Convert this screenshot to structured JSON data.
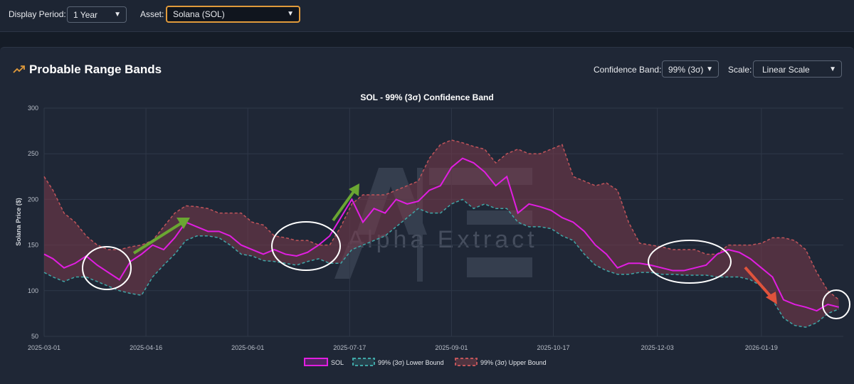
{
  "controls": {
    "display_period_label": "Display Period:",
    "display_period_value": "1 Year",
    "asset_label": "Asset:",
    "asset_value": "Solana (SOL)"
  },
  "card": {
    "title": "Probable Range Bands",
    "confidence_label": "Confidence Band:",
    "confidence_value": "99% (3σ)",
    "scale_label": "Scale:",
    "scale_value": "Linear Scale"
  },
  "watermark": "Alpha Extract",
  "colors": {
    "price": "#e11ee1",
    "lower": "#3fa7a7",
    "upper": "#c0545a",
    "band_fill": "#7a3a4a",
    "accent": "#e09a3b",
    "arrow_up": "#6aa632",
    "arrow_down": "#e0533c",
    "highlight": "#ffffff"
  },
  "chart_data": {
    "type": "line",
    "title": "SOL - 99% (3σ) Confidence Band",
    "ylabel": "Solana Price ($)",
    "xlabel": "",
    "ylim": [
      50,
      300
    ],
    "yticks": [
      "50",
      "100",
      "150",
      "200",
      "250",
      "300"
    ],
    "xlim": [
      "2025-03-01",
      "2026-02-25"
    ],
    "xticks": [
      "2025-03-01",
      "2025-04-16",
      "2025-06-01",
      "2025-07-17",
      "2025-09-01",
      "2025-10-17",
      "2025-12-03",
      "2026-01-19"
    ],
    "grid": true,
    "legend_position": "bottom-center",
    "x": [
      "2025-03-01",
      "2025-03-05",
      "2025-03-10",
      "2025-03-15",
      "2025-03-20",
      "2025-03-25",
      "2025-03-30",
      "2025-04-04",
      "2025-04-09",
      "2025-04-14",
      "2025-04-19",
      "2025-04-24",
      "2025-04-29",
      "2025-05-04",
      "2025-05-09",
      "2025-05-14",
      "2025-05-19",
      "2025-05-24",
      "2025-05-29",
      "2025-06-03",
      "2025-06-08",
      "2025-06-13",
      "2025-06-18",
      "2025-06-23",
      "2025-06-28",
      "2025-07-03",
      "2025-07-08",
      "2025-07-13",
      "2025-07-18",
      "2025-07-23",
      "2025-07-28",
      "2025-08-02",
      "2025-08-07",
      "2025-08-12",
      "2025-08-17",
      "2025-08-22",
      "2025-08-27",
      "2025-09-01",
      "2025-09-06",
      "2025-09-11",
      "2025-09-16",
      "2025-09-21",
      "2025-09-26",
      "2025-10-01",
      "2025-10-06",
      "2025-10-11",
      "2025-10-16",
      "2025-10-21",
      "2025-10-26",
      "2025-10-31",
      "2025-11-05",
      "2025-11-10",
      "2025-11-15",
      "2025-11-20",
      "2025-11-25",
      "2025-11-30",
      "2025-12-05",
      "2025-12-10",
      "2025-12-15",
      "2025-12-20",
      "2025-12-25",
      "2025-12-30",
      "2026-01-04",
      "2026-01-09",
      "2026-01-14",
      "2026-01-19",
      "2026-01-24",
      "2026-01-29",
      "2026-02-03",
      "2026-02-08",
      "2026-02-13",
      "2026-02-18",
      "2026-02-23"
    ],
    "series": [
      {
        "name": "SOL",
        "values": [
          140,
          135,
          125,
          130,
          138,
          128,
          120,
          112,
          132,
          140,
          150,
          145,
          158,
          175,
          170,
          165,
          165,
          160,
          150,
          145,
          140,
          145,
          140,
          138,
          142,
          150,
          160,
          180,
          200,
          175,
          190,
          185,
          200,
          195,
          198,
          210,
          215,
          235,
          245,
          240,
          230,
          215,
          225,
          185,
          195,
          192,
          188,
          180,
          175,
          165,
          150,
          140,
          125,
          130,
          130,
          128,
          125,
          122,
          122,
          125,
          128,
          140,
          145,
          142,
          135,
          125,
          115,
          90,
          85,
          82,
          78,
          85,
          82
        ]
      },
      {
        "name": "99% (3σ) Lower Bound",
        "values": [
          120,
          115,
          110,
          115,
          115,
          110,
          105,
          100,
          97,
          95,
          115,
          128,
          140,
          155,
          160,
          160,
          158,
          150,
          140,
          138,
          133,
          132,
          130,
          128,
          132,
          135,
          130,
          130,
          145,
          150,
          155,
          160,
          170,
          180,
          190,
          185,
          185,
          195,
          200,
          190,
          195,
          190,
          190,
          175,
          170,
          170,
          168,
          160,
          155,
          140,
          128,
          122,
          118,
          118,
          120,
          120,
          118,
          118,
          117,
          117,
          117,
          115,
          115,
          115,
          112,
          105,
          90,
          70,
          62,
          60,
          65,
          75,
          80
        ]
      },
      {
        "name": "99% (3σ) Upper Bound",
        "values": [
          225,
          210,
          185,
          175,
          160,
          150,
          145,
          145,
          148,
          150,
          155,
          170,
          185,
          193,
          192,
          190,
          185,
          185,
          185,
          175,
          172,
          160,
          158,
          155,
          155,
          150,
          150,
          170,
          195,
          205,
          205,
          205,
          210,
          215,
          220,
          245,
          260,
          265,
          262,
          258,
          255,
          240,
          250,
          255,
          250,
          250,
          255,
          260,
          225,
          220,
          215,
          218,
          210,
          175,
          152,
          150,
          148,
          145,
          145,
          145,
          140,
          140,
          150,
          150,
          150,
          152,
          158,
          158,
          155,
          145,
          120,
          100,
          90
        ]
      }
    ]
  }
}
